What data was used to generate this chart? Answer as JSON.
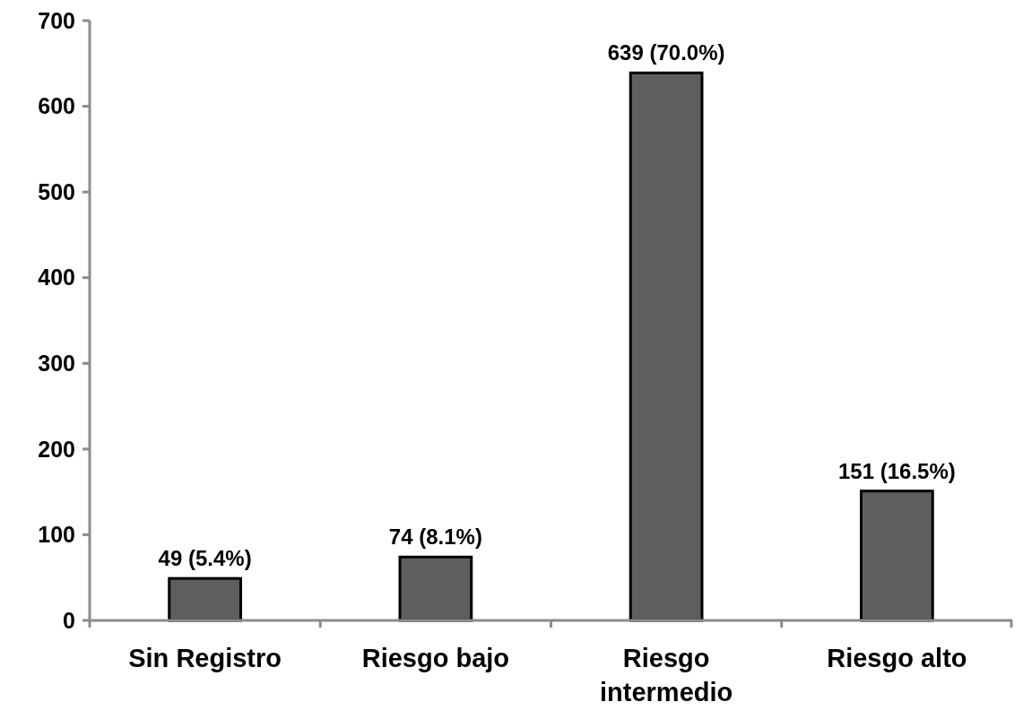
{
  "chart_data": {
    "type": "bar",
    "categories": [
      "Sin Registro",
      "Riesgo bajo",
      "Riesgo intermedio",
      "Riesgo alto"
    ],
    "values": [
      49,
      74,
      639,
      151
    ],
    "value_labels": [
      "49 (5.4%)",
      "74 (8.1%)",
      "639 (70.0%)",
      "151 (16.5%)"
    ],
    "color": "#5e5e5e",
    "ylim": [
      0,
      700
    ],
    "yticks": [
      0,
      100,
      200,
      300,
      400,
      500,
      600,
      700
    ],
    "grid": false
  }
}
